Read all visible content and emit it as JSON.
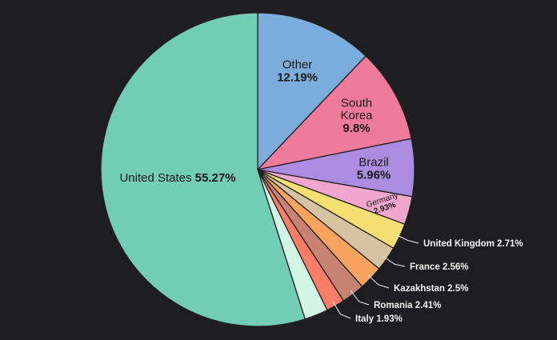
{
  "chart_data": {
    "type": "pie",
    "start_angle": "12 o'clock",
    "direction": "clockwise",
    "slices": [
      {
        "label": "Other",
        "value_text": "12.19%",
        "value": 12.19,
        "color": "#7aaddc"
      },
      {
        "label": "South Korea",
        "value_text": "9.8%",
        "value": 9.8,
        "color": "#f07a99"
      },
      {
        "label": "Brazil",
        "value_text": "5.96%",
        "value": 5.96,
        "color": "#ab8ce0"
      },
      {
        "label": "Germany",
        "value_text": "2.93%",
        "value": 2.93,
        "color": "#f0a6cd"
      },
      {
        "label": "United Kingdom",
        "value_text": "2.71%",
        "value": 2.71,
        "color": "#f4df72"
      },
      {
        "label": "France",
        "value_text": "2.56%",
        "value": 2.56,
        "color": "#d7c3a2"
      },
      {
        "label": "Kazakhstan",
        "value_text": "2.5%",
        "value": 2.5,
        "color": "#f8a45e"
      },
      {
        "label": "Romania",
        "value_text": "2.41%",
        "value": 2.41,
        "color": "#c78271"
      },
      {
        "label": "Italy",
        "value_text": "1.93%",
        "value": 1.93,
        "color": "#f97c66"
      },
      {
        "label": "",
        "value_text": "",
        "value": 2.44,
        "color": "#d3f5e6"
      },
      {
        "label": "United States",
        "value_text": "55.27%",
        "value": 55.27,
        "color": "#72cdb6"
      }
    ]
  }
}
